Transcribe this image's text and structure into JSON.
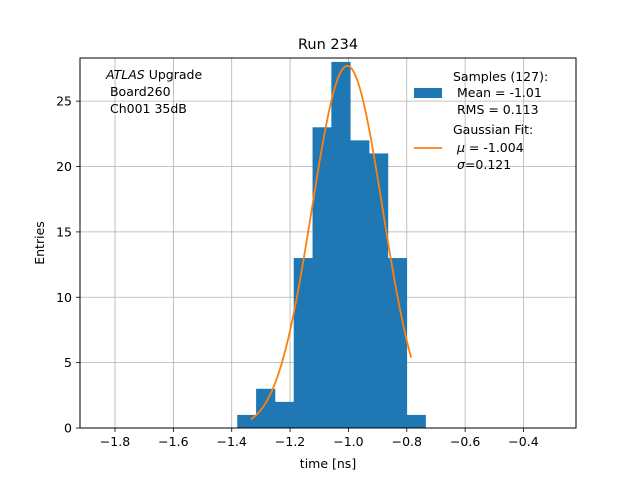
{
  "chart_data": {
    "type": "bar",
    "title": "Run 234",
    "xlabel": "time [ns]",
    "ylabel": "Entries",
    "xlim": [
      -1.92,
      -0.22
    ],
    "ylim": [
      0,
      28.3
    ],
    "grid": true,
    "legend_position": "top-right",
    "xticks": [
      -1.8,
      -1.6,
      -1.4,
      -1.2,
      -1.0,
      -0.8,
      -0.6,
      -0.4
    ],
    "xtick_labels": [
      "−1.8",
      "−1.6",
      "−1.4",
      "−1.2",
      "−1.0",
      "−0.8",
      "−0.6",
      "−0.4"
    ],
    "yticks": [
      0,
      5,
      10,
      15,
      20,
      25
    ],
    "ytick_labels": [
      "0",
      "5",
      "10",
      "15",
      "20",
      "25"
    ],
    "annotation": {
      "italic": "ATLAS",
      "rest": " Upgrade",
      "line2": " Board260",
      "line3": " Ch001 35dB"
    },
    "histogram": {
      "name": "Samples (127):",
      "color": "#1f77b4",
      "bin_edges": [
        -1.381,
        -1.3165,
        -1.252,
        -1.1875,
        -1.123,
        -1.0585,
        -0.994,
        -0.9295,
        -0.865,
        -0.8005,
        -0.736
      ],
      "counts": [
        1,
        3,
        2,
        13,
        23,
        28,
        22,
        21,
        13,
        1
      ]
    },
    "fit": {
      "name": "Gaussian Fit:",
      "color": "#ff7f0e",
      "mu": -1.004,
      "sigma": 0.121,
      "amplitude": 27.7,
      "x_range": [
        -1.335,
        -0.785
      ]
    },
    "legend": {
      "hist_lines": [
        "Samples (127):",
        " Mean = -1.01",
        " RMS = 0.113"
      ],
      "fit_line1": "Gaussian Fit:",
      "fit_mu_sym": "μ",
      "fit_mu_val": " = -1.004",
      "fit_sigma_sym": "σ",
      "fit_sigma_val": "=0.121"
    }
  }
}
